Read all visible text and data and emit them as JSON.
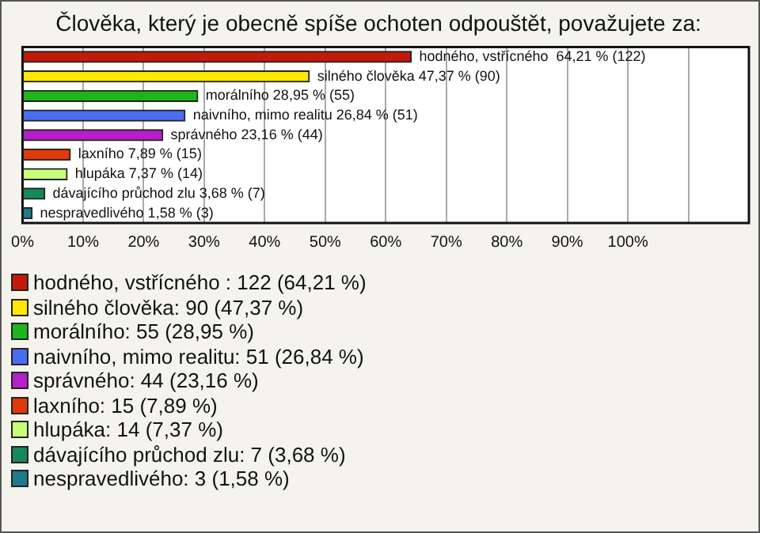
{
  "chart_data": {
    "type": "bar",
    "orientation": "horizontal",
    "stacked": true,
    "title": "Člověka, který je obecně spíše ochoten odpouštět, považujete za:",
    "categories": [
      null,
      null,
      null,
      null,
      null,
      null,
      null,
      null,
      null
    ],
    "xlim": [
      0,
      120
    ],
    "xticks": [
      {
        "value": 0,
        "label": "0%"
      },
      {
        "value": 10,
        "label": "10%"
      },
      {
        "value": 20,
        "label": "20%"
      },
      {
        "value": 30,
        "label": "30%"
      },
      {
        "value": 40,
        "label": "40%"
      },
      {
        "value": 50,
        "label": "50%"
      },
      {
        "value": 60,
        "label": "60%"
      },
      {
        "value": 70,
        "label": "70%"
      },
      {
        "value": 80,
        "label": "80%"
      },
      {
        "value": 90,
        "label": "90%"
      },
      {
        "value": 100,
        "label": "100%"
      },
      {
        "value": 110,
        "label": null
      }
    ],
    "grid": "x",
    "legend": "bottom",
    "series": [
      {
        "name": "hodného, vstřícného : 122 (64,21 %)",
        "color": "#c41a0a",
        "values": [
          64.21,
          null,
          null,
          null,
          null,
          null,
          null,
          null,
          null
        ],
        "value_labels": [
          "hodného, vstřícného  64,21 % (122)",
          null,
          null,
          null,
          null,
          null,
          null,
          null,
          null
        ]
      },
      {
        "name": "silného člověka: 90 (47,37 %)",
        "color": "#ffe800",
        "values": [
          null,
          47.37,
          null,
          null,
          null,
          null,
          null,
          null,
          null
        ],
        "value_labels": [
          null,
          "silného člověka 47,37 % (90)",
          null,
          null,
          null,
          null,
          null,
          null,
          null
        ]
      },
      {
        "name": "morálního: 55 (28,95 %)",
        "color": "#1fb51f",
        "values": [
          null,
          null,
          28.95,
          null,
          null,
          null,
          null,
          null,
          null
        ],
        "value_labels": [
          null,
          null,
          "morálního 28,95 % (55)",
          null,
          null,
          null,
          null,
          null,
          null
        ]
      },
      {
        "name": "naivního, mimo realitu: 51 (26,84 %)",
        "color": "#4a6ef0",
        "values": [
          null,
          null,
          null,
          26.84,
          null,
          null,
          null,
          null,
          null
        ],
        "value_labels": [
          null,
          null,
          null,
          "naivního, mimo realitu 26,84 % (51)",
          null,
          null,
          null,
          null,
          null
        ]
      },
      {
        "name": "správného: 44 (23,16 %)",
        "color": "#b61ec8",
        "values": [
          null,
          null,
          null,
          null,
          23.16,
          null,
          null,
          null,
          null
        ],
        "value_labels": [
          null,
          null,
          null,
          null,
          "správného 23,16 % (44)",
          null,
          null,
          null,
          null
        ]
      },
      {
        "name": "laxního: 15 (7,89 %)",
        "color": "#e03a0a",
        "values": [
          null,
          null,
          null,
          null,
          null,
          7.89,
          null,
          null,
          null
        ],
        "value_labels": [
          null,
          null,
          null,
          null,
          null,
          "laxního 7,89 % (15)",
          null,
          null,
          null
        ]
      },
      {
        "name": "hlupáka: 14 (7,37 %)",
        "color": "#c8ff78",
        "values": [
          null,
          null,
          null,
          null,
          null,
          null,
          7.37,
          null,
          null
        ],
        "value_labels": [
          null,
          null,
          null,
          null,
          null,
          null,
          "hlupáka 7,37 % (14)",
          null,
          null
        ]
      },
      {
        "name": "dávajícího průchod zlu: 7 (3,68 %)",
        "color": "#148a58",
        "values": [
          null,
          null,
          null,
          null,
          null,
          null,
          null,
          3.68,
          null
        ],
        "value_labels": [
          null,
          null,
          null,
          null,
          null,
          null,
          null,
          "dávajícího průchod zlu 3,68 % (7)",
          null
        ]
      },
      {
        "name": "nespravedlivého: 3 (1,58 %)",
        "color": "#1f7a8a",
        "values": [
          null,
          null,
          null,
          null,
          null,
          null,
          null,
          null,
          1.58
        ],
        "value_labels": [
          null,
          null,
          null,
          null,
          null,
          null,
          null,
          null,
          "nespravedlivého 1,58 % (3)"
        ]
      }
    ]
  }
}
